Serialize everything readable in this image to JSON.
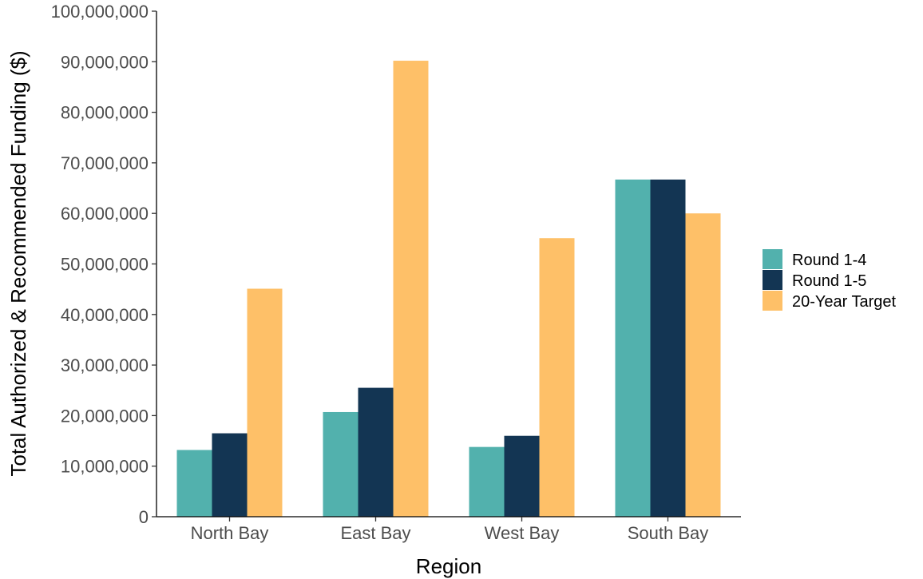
{
  "chart_data": {
    "type": "bar",
    "title": "",
    "xlabel": "Region",
    "ylabel": "Total Authorized & Recommended Funding ($)",
    "categories": [
      "North Bay",
      "East Bay",
      "West Bay",
      "South Bay"
    ],
    "series": [
      {
        "name": "Round 1-4",
        "color": "#52b1ad",
        "values": [
          13200000,
          20700000,
          13800000,
          66700000
        ]
      },
      {
        "name": "Round 1-5",
        "color": "#133553",
        "values": [
          16500000,
          25500000,
          16000000,
          66700000
        ]
      },
      {
        "name": "20-Year Target",
        "color": "#fec068",
        "values": [
          45100000,
          90200000,
          55100000,
          60000000
        ]
      }
    ],
    "ylim": [
      0,
      100000000
    ],
    "yticks": [
      0,
      10000000,
      20000000,
      30000000,
      40000000,
      50000000,
      60000000,
      70000000,
      80000000,
      90000000,
      100000000
    ],
    "ytick_labels": [
      "0",
      "10,000,000",
      "20,000,000",
      "30,000,000",
      "40,000,000",
      "50,000,000",
      "60,000,000",
      "70,000,000",
      "80,000,000",
      "90,000,000",
      "100,000,000"
    ],
    "grid": false,
    "legend_position": "right"
  }
}
